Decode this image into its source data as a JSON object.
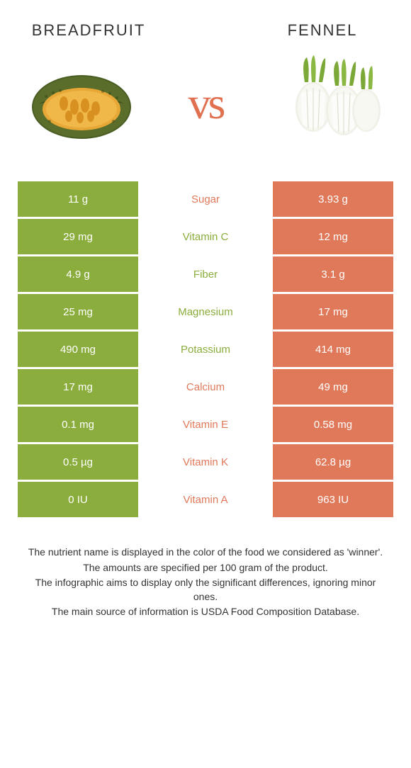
{
  "header": {
    "left_title": "BREADFRUIT",
    "right_title": "FENNEL",
    "vs_label": "vs"
  },
  "colors": {
    "left": "#8aad3d",
    "right": "#e0795a",
    "left_text": "#8aad3d",
    "right_text": "#e0795a"
  },
  "nutrients": [
    {
      "name": "Sugar",
      "left": "11 g",
      "right": "3.93 g",
      "winner": "right"
    },
    {
      "name": "Vitamin C",
      "left": "29 mg",
      "right": "12 mg",
      "winner": "left"
    },
    {
      "name": "Fiber",
      "left": "4.9 g",
      "right": "3.1 g",
      "winner": "left"
    },
    {
      "name": "Magnesium",
      "left": "25 mg",
      "right": "17 mg",
      "winner": "left"
    },
    {
      "name": "Potassium",
      "left": "490 mg",
      "right": "414 mg",
      "winner": "left"
    },
    {
      "name": "Calcium",
      "left": "17 mg",
      "right": "49 mg",
      "winner": "right"
    },
    {
      "name": "Vitamin E",
      "left": "0.1 mg",
      "right": "0.58 mg",
      "winner": "right"
    },
    {
      "name": "Vitamin K",
      "left": "0.5 µg",
      "right": "62.8 µg",
      "winner": "right"
    },
    {
      "name": "Vitamin A",
      "left": "0 IU",
      "right": "963 IU",
      "winner": "right"
    }
  ],
  "footer": {
    "line1": "The nutrient name is displayed in the color of the food we considered as 'winner'.",
    "line2": "The amounts are specified per 100 gram of the product.",
    "line3": "The infographic aims to display only the significant differences, ignoring minor ones.",
    "line4": "The main source of information is USDA Food Composition Database."
  }
}
